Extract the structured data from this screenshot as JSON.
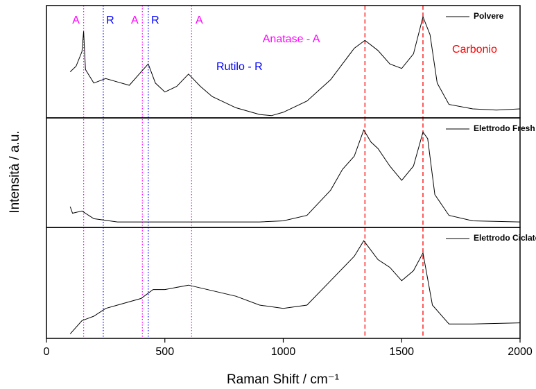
{
  "chart_data": {
    "type": "line",
    "x_label": "Raman Shift / cm⁻¹",
    "y_label": "Intensità / a.u.",
    "xlim": [
      0,
      2000
    ],
    "xticks": [
      0,
      500,
      1000,
      1500,
      2000
    ],
    "ylim": [
      0,
      1
    ],
    "panels": [
      {
        "name": "Polvere",
        "color": "#000000",
        "x": [
          100,
          125,
          150,
          157,
          165,
          200,
          250,
          300,
          350,
          400,
          430,
          460,
          500,
          550,
          600,
          650,
          700,
          800,
          900,
          950,
          1000,
          1100,
          1200,
          1300,
          1345,
          1400,
          1450,
          1500,
          1550,
          1590,
          1620,
          1650,
          1700,
          1800,
          1900,
          2000
        ],
        "values": [
          0.41,
          0.46,
          0.59,
          0.77,
          0.43,
          0.31,
          0.35,
          0.32,
          0.29,
          0.41,
          0.48,
          0.31,
          0.23,
          0.28,
          0.39,
          0.28,
          0.19,
          0.09,
          0.03,
          0.02,
          0.05,
          0.15,
          0.34,
          0.62,
          0.69,
          0.6,
          0.48,
          0.44,
          0.57,
          0.9,
          0.74,
          0.31,
          0.12,
          0.08,
          0.07,
          0.08
        ]
      },
      {
        "name": "Elettrodo Fresh",
        "color": "#000000",
        "x": [
          100,
          110,
          150,
          200,
          300,
          500,
          700,
          900,
          1000,
          1100,
          1200,
          1250,
          1300,
          1340,
          1370,
          1400,
          1450,
          1500,
          1550,
          1590,
          1610,
          1640,
          1700,
          1800,
          2000
        ],
        "values": [
          0.19,
          0.13,
          0.15,
          0.08,
          0.05,
          0.05,
          0.05,
          0.05,
          0.06,
          0.11,
          0.34,
          0.53,
          0.65,
          0.89,
          0.78,
          0.72,
          0.56,
          0.43,
          0.56,
          0.87,
          0.81,
          0.3,
          0.11,
          0.06,
          0.05
        ]
      },
      {
        "name": "Elettrodo Ciclato",
        "color": "#000000",
        "x": [
          100,
          150,
          200,
          250,
          300,
          400,
          450,
          500,
          600,
          700,
          800,
          900,
          1000,
          1100,
          1200,
          1300,
          1340,
          1400,
          1450,
          1500,
          1550,
          1590,
          1630,
          1700,
          1800,
          2000
        ],
        "values": [
          0.04,
          0.16,
          0.2,
          0.27,
          0.3,
          0.36,
          0.44,
          0.44,
          0.48,
          0.43,
          0.38,
          0.3,
          0.27,
          0.3,
          0.52,
          0.74,
          0.88,
          0.71,
          0.64,
          0.52,
          0.61,
          0.77,
          0.3,
          0.13,
          0.13,
          0.14
        ]
      }
    ],
    "reference_lines": [
      {
        "x": 157,
        "color": "#ff00ff",
        "style": "dotted",
        "label": "A"
      },
      {
        "x": 240,
        "color": "#0000ff",
        "style": "dotted",
        "label": "R"
      },
      {
        "x": 405,
        "color": "#ff00ff",
        "style": "dotted",
        "label": "A"
      },
      {
        "x": 430,
        "color": "#0000ff",
        "style": "dotted",
        "label": "R"
      },
      {
        "x": 613,
        "color": "#ff00ff",
        "style": "dotted",
        "label": "A"
      },
      {
        "x": 1345,
        "color": "#ff0000",
        "style": "dashed"
      },
      {
        "x": 1590,
        "color": "#ff0000",
        "style": "dashed"
      }
    ],
    "annotations": [
      {
        "text": "Anatase - A",
        "color": "#ff00ff"
      },
      {
        "text": "Rutilo - R",
        "color": "#0000ff"
      },
      {
        "text": "Carbonio",
        "color": "#ff0000"
      }
    ]
  }
}
